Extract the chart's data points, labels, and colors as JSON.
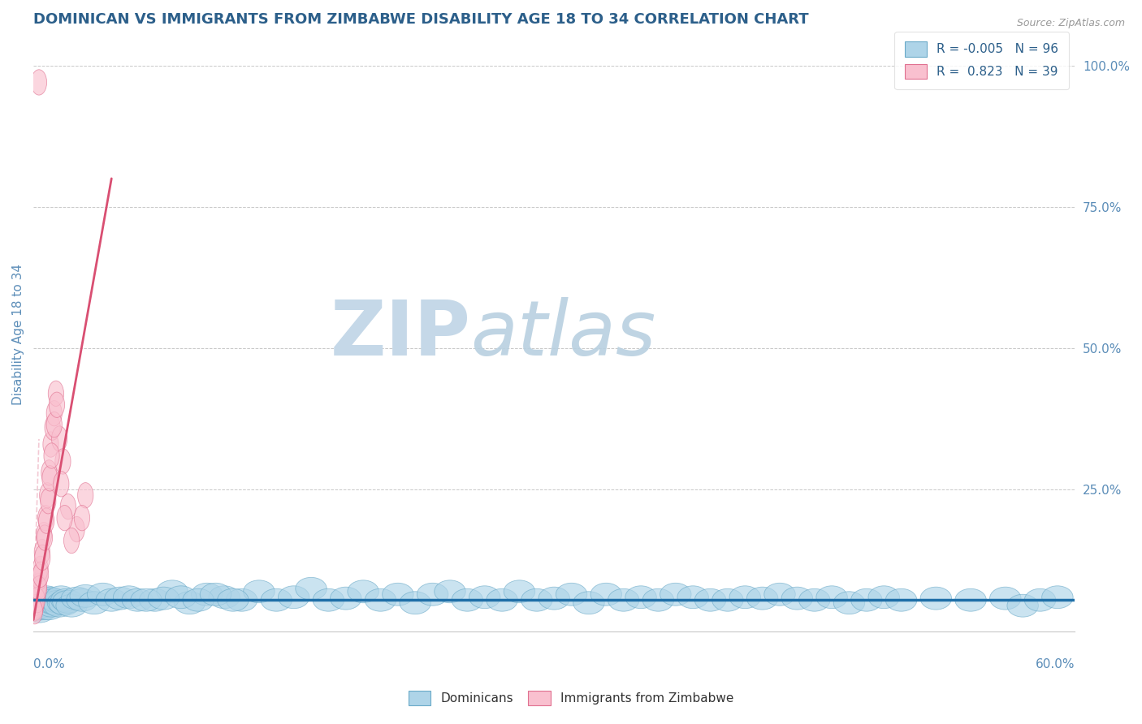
{
  "title": "DOMINICAN VS IMMIGRANTS FROM ZIMBABWE DISABILITY AGE 18 TO 34 CORRELATION CHART",
  "source": "Source: ZipAtlas.com",
  "ylabel": "Disability Age 18 to 34",
  "xlim": [
    0,
    60
  ],
  "ylim": [
    0,
    105
  ],
  "ytick_positions": [
    0,
    25,
    50,
    75,
    100
  ],
  "ytick_labels": [
    "",
    "25.0%",
    "50.0%",
    "75.0%",
    "100.0%"
  ],
  "legend_line1": "R = -0.005   N = 96",
  "legend_line2": "R =  0.823   N = 39",
  "blue_color": "#92c5de",
  "blue_fill": "#aed4e8",
  "blue_edge": "#6aaac8",
  "blue_line_color": "#1f6fa8",
  "pink_color": "#f4a6ba",
  "pink_fill": "#f9c0cf",
  "pink_edge": "#e07090",
  "pink_line_color": "#d94f72",
  "grid_color": "#c8c8c8",
  "title_color": "#2c5f8a",
  "axis_label_color": "#5b8db8",
  "source_color": "#999999",
  "watermark_zip_color": "#c5d8e8",
  "watermark_atlas_color": "#b8d0e0",
  "background": "#ffffff",
  "blue_x_dense": [
    0.1,
    0.15,
    0.2,
    0.25,
    0.3,
    0.35,
    0.4,
    0.45,
    0.5,
    0.55,
    0.6,
    0.65,
    0.7,
    0.75,
    0.8,
    0.85,
    0.9,
    0.95,
    1.0,
    1.05,
    1.1,
    1.2,
    1.3,
    1.4,
    1.5,
    1.6,
    1.7,
    1.8,
    1.9,
    2.0,
    2.2,
    2.5,
    2.8,
    3.0,
    3.5,
    4.0,
    4.5,
    5.0,
    5.5,
    6.0
  ],
  "blue_x_spread": [
    7.0,
    8.0,
    9.0,
    10.0,
    11.0,
    12.0,
    13.0,
    14.0,
    15.0,
    16.0,
    17.0,
    18.0,
    19.0,
    20.0,
    21.0,
    22.0,
    23.0,
    24.0,
    25.0,
    26.0,
    27.0,
    28.0,
    29.0,
    30.0,
    31.0,
    32.0,
    33.0,
    34.0,
    35.0,
    36.0,
    37.0,
    38.0,
    39.0,
    40.0,
    41.0,
    42.0,
    43.0,
    44.0,
    45.0,
    46.0,
    47.0,
    48.0,
    49.0,
    50.0,
    52.0,
    54.0,
    56.0,
    57.0,
    58.0,
    59.0,
    6.5,
    7.5,
    8.5,
    9.5,
    10.5,
    11.5
  ],
  "blue_y_dense": [
    4.5,
    3.8,
    5.2,
    4.0,
    5.5,
    3.5,
    4.8,
    5.0,
    4.2,
    5.8,
    4.0,
    5.5,
    4.5,
    6.0,
    4.8,
    5.2,
    4.0,
    5.5,
    5.8,
    4.5,
    5.0,
    5.5,
    4.8,
    5.2,
    4.5,
    6.0,
    5.0,
    4.8,
    5.5,
    5.2,
    4.5,
    5.8,
    5.5,
    6.2,
    5.0,
    6.5,
    5.5,
    5.8,
    6.0,
    5.5
  ],
  "blue_y_spread": [
    5.5,
    7.0,
    5.0,
    6.5,
    6.0,
    5.5,
    7.0,
    5.5,
    6.0,
    7.5,
    5.5,
    5.8,
    7.0,
    5.5,
    6.5,
    5.0,
    6.5,
    7.0,
    5.5,
    6.0,
    5.5,
    7.0,
    5.5,
    5.8,
    6.5,
    5.0,
    6.5,
    5.5,
    6.0,
    5.5,
    6.5,
    6.0,
    5.5,
    5.5,
    6.0,
    5.8,
    6.5,
    5.8,
    5.5,
    6.0,
    5.0,
    5.5,
    6.0,
    5.5,
    5.8,
    5.5,
    5.8,
    4.5,
    5.5,
    6.0,
    5.5,
    5.8,
    6.0,
    5.5,
    6.5,
    5.5
  ],
  "pink_x": [
    0.05,
    0.1,
    0.15,
    0.2,
    0.25,
    0.3,
    0.35,
    0.4,
    0.5,
    0.6,
    0.7,
    0.8,
    0.9,
    1.0,
    1.1,
    1.2,
    1.3,
    1.5,
    1.7,
    2.0,
    2.5,
    3.0,
    0.12,
    0.22,
    0.32,
    0.42,
    0.52,
    0.65,
    0.75,
    0.85,
    0.95,
    1.05,
    1.2,
    1.35,
    1.6,
    1.8,
    2.2,
    2.8,
    0.08
  ],
  "pink_y": [
    4.0,
    4.5,
    5.0,
    5.8,
    6.5,
    8.0,
    9.5,
    11.0,
    14.0,
    17.0,
    20.0,
    24.0,
    28.0,
    33.0,
    36.0,
    38.5,
    42.0,
    34.0,
    30.0,
    22.0,
    18.0,
    24.0,
    4.2,
    5.5,
    7.5,
    10.0,
    13.0,
    16.5,
    19.5,
    23.0,
    27.0,
    31.0,
    36.5,
    40.0,
    26.0,
    20.0,
    16.0,
    20.0,
    3.5
  ],
  "pink_outlier_x": 0.32,
  "pink_outlier_y": 97.0,
  "pink_line_x0": 0.0,
  "pink_line_y0": 2.0,
  "pink_line_x1": 4.5,
  "pink_line_y1": 80.0,
  "blue_line_y": 5.5
}
